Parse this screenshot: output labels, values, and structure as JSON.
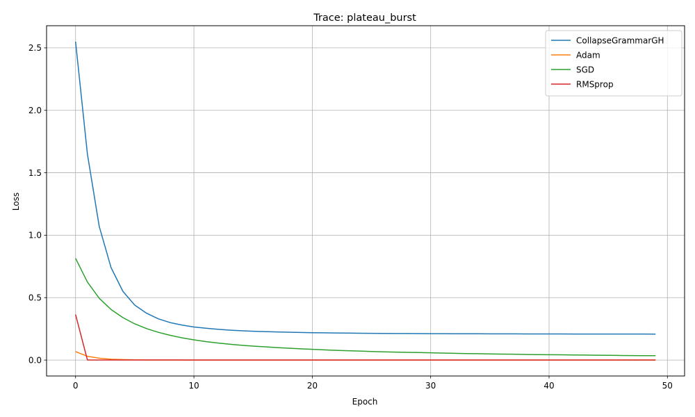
{
  "chart_data": {
    "type": "line",
    "title": "Trace: plateau_burst",
    "xlabel": "Epoch",
    "ylabel": "Loss",
    "xlim": [
      -2.45,
      51.45
    ],
    "ylim": [
      -0.1275,
      2.6775
    ],
    "xticks": [
      0,
      10,
      20,
      30,
      40,
      50
    ],
    "yticks": [
      0.0,
      0.5,
      1.0,
      1.5,
      2.0,
      2.5
    ],
    "xtick_labels": [
      "0",
      "10",
      "20",
      "30",
      "40",
      "50"
    ],
    "ytick_labels": [
      "0.0",
      "0.5",
      "1.0",
      "1.5",
      "2.0",
      "2.5"
    ],
    "grid": true,
    "legend_position": "top-right",
    "series": [
      {
        "name": "CollapseGrammarGH",
        "color": "#1f77b4",
        "x": [
          0,
          1,
          2,
          3,
          4,
          5,
          6,
          7,
          8,
          9,
          10,
          11,
          12,
          13,
          14,
          15,
          16,
          17,
          18,
          19,
          20,
          21,
          22,
          23,
          24,
          25,
          26,
          27,
          28,
          29,
          30,
          31,
          32,
          33,
          34,
          35,
          36,
          37,
          38,
          39,
          40,
          41,
          42,
          43,
          44,
          45,
          46,
          47,
          48,
          49
        ],
        "y": [
          2.55,
          1.65,
          1.07,
          0.74,
          0.55,
          0.44,
          0.375,
          0.33,
          0.3,
          0.28,
          0.265,
          0.255,
          0.247,
          0.24,
          0.235,
          0.231,
          0.228,
          0.225,
          0.223,
          0.221,
          0.219,
          0.218,
          0.217,
          0.216,
          0.215,
          0.214,
          0.2135,
          0.213,
          0.2125,
          0.212,
          0.2115,
          0.211,
          0.2108,
          0.2105,
          0.2103,
          0.21,
          0.2098,
          0.2096,
          0.2094,
          0.2092,
          0.209,
          0.2089,
          0.2088,
          0.2087,
          0.2086,
          0.2085,
          0.2084,
          0.2083,
          0.2082,
          0.2081
        ]
      },
      {
        "name": "Adam",
        "color": "#ff7f0e",
        "x": [
          0,
          1,
          2,
          3,
          4,
          5,
          6,
          7,
          8,
          9,
          10,
          11,
          12,
          13,
          14,
          15,
          16,
          17,
          18,
          19,
          20,
          21,
          22,
          23,
          24,
          25,
          26,
          27,
          28,
          29,
          30,
          31,
          32,
          33,
          34,
          35,
          36,
          37,
          38,
          39,
          40,
          41,
          42,
          43,
          44,
          45,
          46,
          47,
          48,
          49
        ],
        "y": [
          0.068,
          0.03,
          0.015,
          0.007,
          0.004,
          0.002,
          0.0015,
          0.001,
          0.001,
          0.0008,
          0.0007,
          0.0006,
          0.0006,
          0.0005,
          0.0005,
          0.0005,
          0.0005,
          0.0004,
          0.0004,
          0.0004,
          0.0004,
          0.0004,
          0.0004,
          0.0004,
          0.0003,
          0.0003,
          0.0003,
          0.0003,
          0.0003,
          0.0003,
          0.0003,
          0.0003,
          0.0003,
          0.0003,
          0.0003,
          0.0003,
          0.0003,
          0.0003,
          0.0003,
          0.0003,
          0.0003,
          0.0003,
          0.0003,
          0.0003,
          0.0003,
          0.0003,
          0.0003,
          0.0003,
          0.0003,
          0.0003
        ]
      },
      {
        "name": "SGD",
        "color": "#2ca02c",
        "x": [
          0,
          1,
          2,
          3,
          4,
          5,
          6,
          7,
          8,
          9,
          10,
          11,
          12,
          13,
          14,
          15,
          16,
          17,
          18,
          19,
          20,
          21,
          22,
          23,
          24,
          25,
          26,
          27,
          28,
          29,
          30,
          31,
          32,
          33,
          34,
          35,
          36,
          37,
          38,
          39,
          40,
          41,
          42,
          43,
          44,
          45,
          46,
          47,
          48,
          49
        ],
        "y": [
          0.815,
          0.625,
          0.495,
          0.405,
          0.34,
          0.29,
          0.252,
          0.222,
          0.198,
          0.178,
          0.162,
          0.148,
          0.137,
          0.127,
          0.119,
          0.112,
          0.106,
          0.1,
          0.095,
          0.09,
          0.086,
          0.082,
          0.078,
          0.075,
          0.072,
          0.069,
          0.066,
          0.064,
          0.062,
          0.06,
          0.058,
          0.056,
          0.054,
          0.052,
          0.051,
          0.049,
          0.048,
          0.047,
          0.045,
          0.044,
          0.043,
          0.042,
          0.041,
          0.04,
          0.039,
          0.038,
          0.037,
          0.036,
          0.0355,
          0.035
        ]
      },
      {
        "name": "RMSprop",
        "color": "#d62728",
        "x": [
          0,
          1,
          2,
          3,
          4,
          5,
          6,
          7,
          8,
          9,
          10,
          11,
          12,
          13,
          14,
          15,
          16,
          17,
          18,
          19,
          20,
          21,
          22,
          23,
          24,
          25,
          26,
          27,
          28,
          29,
          30,
          31,
          32,
          33,
          34,
          35,
          36,
          37,
          38,
          39,
          40,
          41,
          42,
          43,
          44,
          45,
          46,
          47,
          48,
          49
        ],
        "y": [
          0.365,
          0.0008,
          0.0006,
          0.0005,
          0.0005,
          0.0004,
          0.0004,
          0.0004,
          0.0004,
          0.0003,
          0.0003,
          0.0003,
          0.0003,
          0.0003,
          0.0003,
          0.0003,
          0.0003,
          0.0003,
          0.0003,
          0.0003,
          0.0003,
          0.0003,
          0.0003,
          0.0003,
          0.0003,
          0.0003,
          0.0003,
          0.0003,
          0.0003,
          0.0003,
          0.0003,
          0.0003,
          0.0003,
          0.0003,
          0.0003,
          0.0003,
          0.0003,
          0.0003,
          0.0003,
          0.0003,
          0.0003,
          0.0003,
          0.0003,
          0.0003,
          0.0003,
          0.0003,
          0.0003,
          0.0003,
          0.0003,
          0.0003
        ]
      }
    ]
  }
}
